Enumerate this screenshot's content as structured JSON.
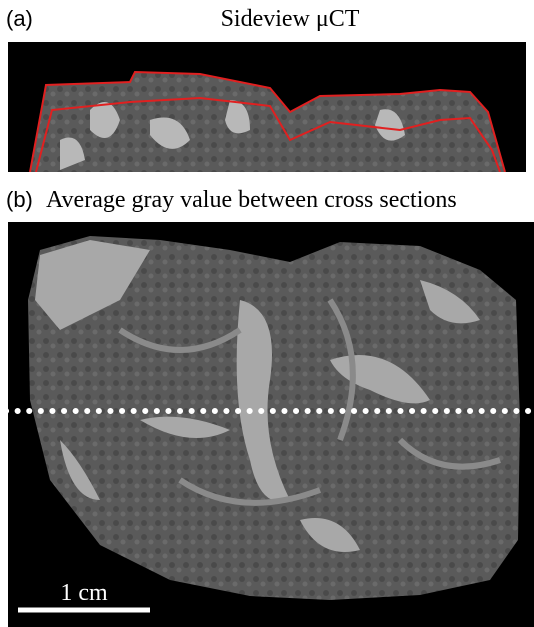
{
  "panels": [
    {
      "label": "(a)",
      "title": "Sideview μCT"
    },
    {
      "label": "(b)",
      "title": "Average gray value between cross sections",
      "scale_bar": "1 cm"
    }
  ]
}
